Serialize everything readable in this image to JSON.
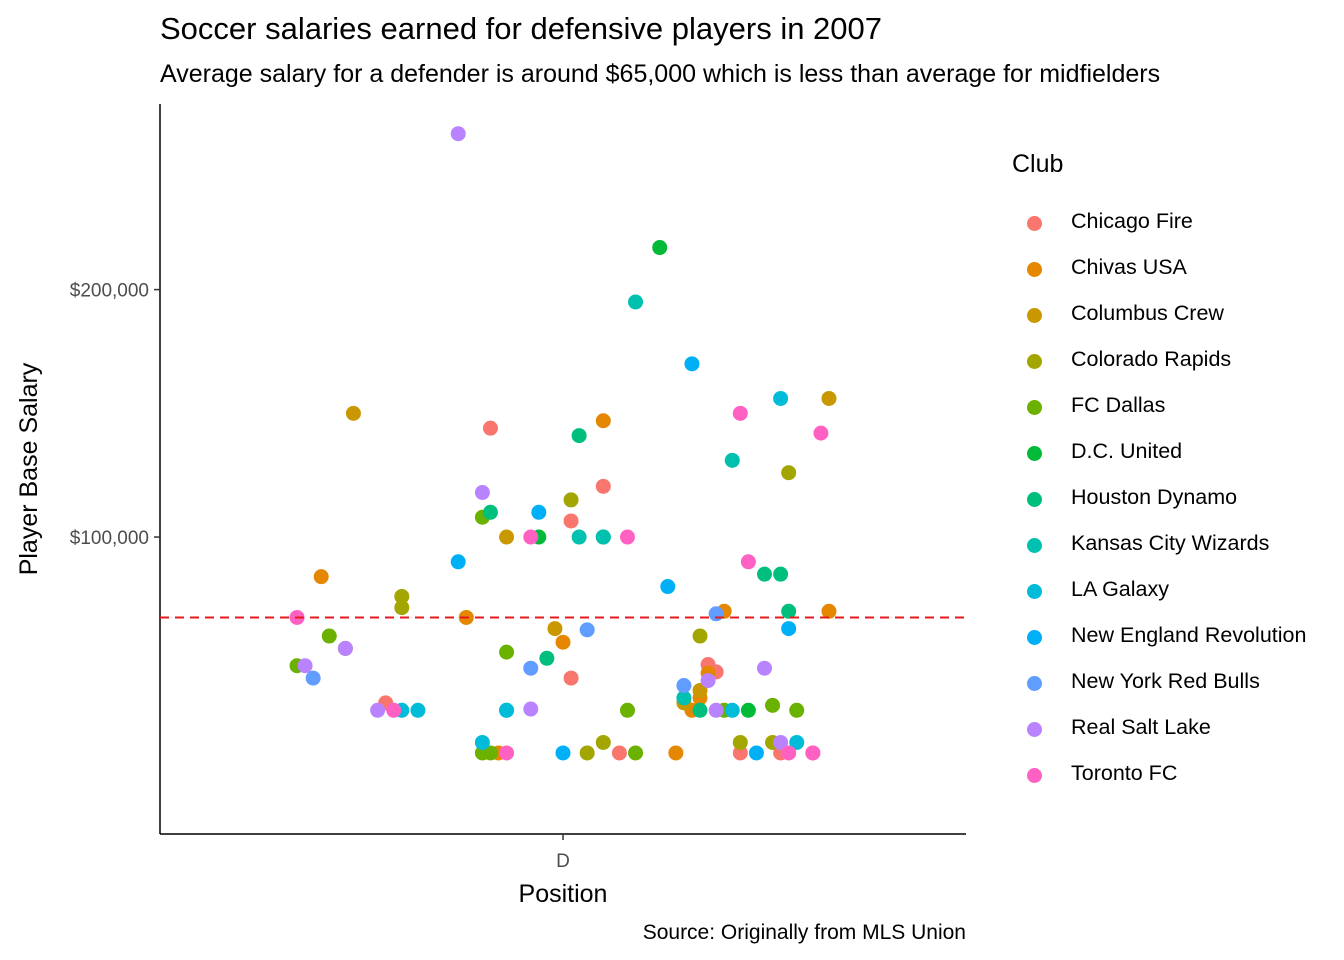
{
  "chart_data": {
    "type": "scatter",
    "title": "Soccer salaries earned for defensive players in 2007",
    "subtitle": "Average salary for a defender is around $65,000 which is less than average for midfielders",
    "xlabel": "Position",
    "ylabel": "Player Base Salary",
    "caption": "Source: Originally from MLS Union",
    "categories": [
      "D"
    ],
    "ylim": [
      -20000,
      275000
    ],
    "yticks": [
      100000,
      200000
    ],
    "ytick_labels": [
      "$100,000",
      "$200,000"
    ],
    "reference_line": {
      "value": 67500,
      "style": "dashed",
      "color": "#e41a1c"
    },
    "grid": false,
    "legend": {
      "title": "Club",
      "placement": "right"
    },
    "series": [
      {
        "name": "Chicago Fire",
        "color": "#F8766D",
        "points": [
          [
            -0.09,
            144000
          ],
          [
            0.01,
            106500
          ],
          [
            0.01,
            43000
          ],
          [
            0.05,
            120500
          ],
          [
            0.07,
            12750
          ],
          [
            0.18,
            48500
          ],
          [
            0.19,
            45500
          ],
          [
            0.22,
            12750
          ],
          [
            0.27,
            12750
          ],
          [
            0.31,
            12750
          ],
          [
            -0.22,
            33000
          ]
        ]
      },
      {
        "name": "Chivas USA",
        "color": "#E58700",
        "points": [
          [
            -0.3,
            84000
          ],
          [
            -0.12,
            67500
          ],
          [
            -0.08,
            12750
          ],
          [
            0.0,
            57500
          ],
          [
            0.05,
            147000
          ],
          [
            0.14,
            12750
          ],
          [
            0.16,
            30000
          ],
          [
            0.17,
            35000
          ],
          [
            0.18,
            45000
          ],
          [
            0.2,
            70000
          ],
          [
            0.33,
            70000
          ]
        ]
      },
      {
        "name": "Columbus Crew",
        "color": "#C99800",
        "points": [
          [
            -0.26,
            150000
          ],
          [
            -0.07,
            100000
          ],
          [
            -0.01,
            63000
          ],
          [
            0.17,
            38000
          ],
          [
            0.15,
            33000
          ],
          [
            0.33,
            156000
          ]
        ]
      },
      {
        "name": "Colorado Rapids",
        "color": "#A3A500",
        "points": [
          [
            -0.27,
            55000
          ],
          [
            -0.2,
            76000
          ],
          [
            -0.2,
            71500
          ],
          [
            0.01,
            115000
          ],
          [
            0.03,
            12750
          ],
          [
            0.05,
            17000
          ],
          [
            0.17,
            60000
          ],
          [
            0.22,
            17000
          ],
          [
            0.26,
            17000
          ],
          [
            0.28,
            126000
          ]
        ]
      },
      {
        "name": "FC Dallas",
        "color": "#6BB100",
        "points": [
          [
            -0.33,
            48000
          ],
          [
            -0.29,
            60000
          ],
          [
            -0.1,
            108000
          ],
          [
            -0.1,
            12750
          ],
          [
            -0.09,
            12750
          ],
          [
            -0.07,
            53500
          ],
          [
            0.08,
            30000
          ],
          [
            0.09,
            12750
          ],
          [
            0.2,
            30000
          ],
          [
            0.26,
            32000
          ],
          [
            0.29,
            30000
          ]
        ]
      },
      {
        "name": "D.C. United",
        "color": "#00BA38",
        "points": [
          [
            0.12,
            217000
          ],
          [
            -0.03,
            100000
          ],
          [
            0.05,
            100000
          ],
          [
            0.23,
            30000
          ]
        ]
      },
      {
        "name": "Houston Dynamo",
        "color": "#00BF7D",
        "points": [
          [
            0.02,
            141000
          ],
          [
            -0.09,
            110000
          ],
          [
            -0.02,
            51000
          ],
          [
            0.17,
            30000
          ],
          [
            0.25,
            85000
          ],
          [
            0.27,
            85000
          ],
          [
            0.28,
            70000
          ]
        ]
      },
      {
        "name": "Kansas City Wizards",
        "color": "#00C0AF",
        "points": [
          [
            0.09,
            195000
          ],
          [
            0.21,
            131000
          ],
          [
            0.02,
            100000
          ],
          [
            0.05,
            100000
          ],
          [
            -0.07,
            30000
          ],
          [
            0.15,
            35000
          ]
        ]
      },
      {
        "name": "LA Galaxy",
        "color": "#00BCD8",
        "points": [
          [
            0.27,
            156000
          ],
          [
            -0.2,
            30000
          ],
          [
            -0.18,
            30000
          ],
          [
            -0.1,
            17000
          ],
          [
            -0.07,
            30000
          ],
          [
            0.21,
            30000
          ],
          [
            0.29,
            17000
          ]
        ]
      },
      {
        "name": "New England Revolution",
        "color": "#00B0F6",
        "points": [
          [
            0.16,
            170000
          ],
          [
            -0.13,
            90000
          ],
          [
            -0.03,
            110000
          ],
          [
            0.0,
            12750
          ],
          [
            0.13,
            80000
          ],
          [
            0.24,
            12750
          ],
          [
            0.28,
            63000
          ]
        ]
      },
      {
        "name": "New York Red Bulls",
        "color": "#619CFF",
        "points": [
          [
            -0.31,
            43000
          ],
          [
            -0.04,
            47000
          ],
          [
            0.03,
            62500
          ],
          [
            0.19,
            69000
          ],
          [
            0.15,
            40000
          ]
        ]
      },
      {
        "name": "Real Salt Lake",
        "color": "#B983FF",
        "points": [
          [
            -0.13,
            263000
          ],
          [
            -0.1,
            118000
          ],
          [
            -0.32,
            48000
          ],
          [
            -0.27,
            55000
          ],
          [
            -0.23,
            30000
          ],
          [
            -0.04,
            30500
          ],
          [
            0.19,
            30000
          ],
          [
            0.25,
            47000
          ],
          [
            0.27,
            17000
          ],
          [
            0.18,
            42000
          ]
        ]
      },
      {
        "name": "Toronto FC",
        "color": "#FF61C3",
        "points": [
          [
            -0.33,
            67500
          ],
          [
            -0.21,
            30000
          ],
          [
            -0.07,
            12750
          ],
          [
            -0.04,
            100000
          ],
          [
            0.08,
            100000
          ],
          [
            0.22,
            150000
          ],
          [
            0.23,
            90000
          ],
          [
            0.28,
            12750
          ],
          [
            0.32,
            142000
          ],
          [
            0.31,
            12750
          ]
        ]
      }
    ]
  }
}
